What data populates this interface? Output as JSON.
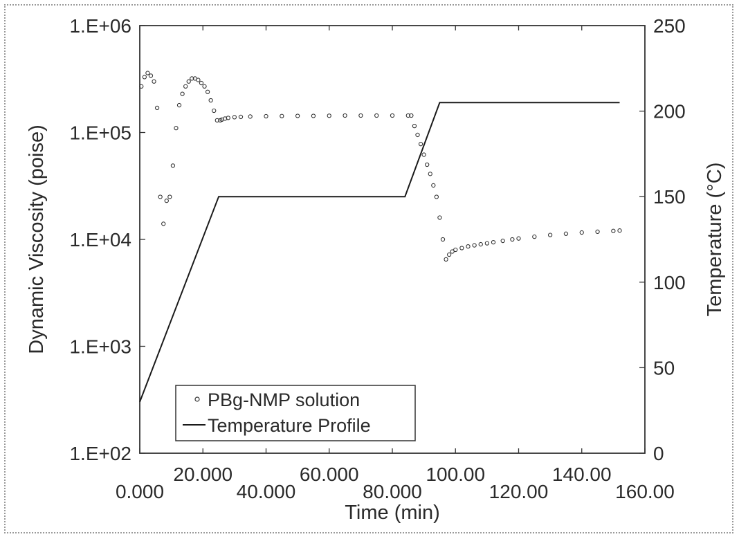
{
  "chart_data": {
    "type": "scatter",
    "xlabel": "Time (min)",
    "ylabel_left": "Dynamic Viscosity (poise)",
    "ylabel_right": "Temperature (°C)",
    "x_ticks_lower": [
      "0.000",
      "40.000",
      "80.000",
      "120.00",
      "160.00"
    ],
    "x_ticks_upper": [
      "20.000",
      "60.000",
      "100.00",
      "140.00"
    ],
    "x_tick_values_lower": [
      0,
      40,
      80,
      120,
      160
    ],
    "x_tick_values_upper": [
      20,
      60,
      100,
      140
    ],
    "y_left_ticks": [
      "1.E+02",
      "1.E+03",
      "1.E+04",
      "1.E+05",
      "1.E+06"
    ],
    "y_left_tick_values": [
      100,
      1000,
      10000,
      100000,
      1000000
    ],
    "y_right_ticks": [
      "0",
      "50",
      "100",
      "150",
      "200",
      "250"
    ],
    "y_right_tick_values": [
      0,
      50,
      100,
      150,
      200,
      250
    ],
    "xlim": [
      0,
      160
    ],
    "ylim_left": [
      100,
      1000000
    ],
    "ylim_left_scale": "log",
    "ylim_right": [
      0,
      250
    ],
    "legend_position": "bottom-left",
    "grid": false,
    "series": [
      {
        "name": "PBg-NMP solution",
        "axis": "left",
        "marker": "open-circle",
        "color": "#333333",
        "x": [
          0.5,
          1.5,
          2.5,
          3.5,
          4.5,
          5.5,
          6.5,
          7.5,
          8.5,
          9.5,
          10.5,
          11.5,
          12.5,
          13.5,
          14.5,
          15.5,
          16.5,
          17.5,
          18.5,
          19.5,
          20.5,
          21.5,
          22.5,
          23.5,
          24.5,
          25.5,
          26,
          27,
          28,
          30,
          32,
          35,
          40,
          45,
          50,
          55,
          60,
          65,
          70,
          75,
          80,
          85,
          86,
          87,
          88,
          89,
          90,
          91,
          92,
          93,
          94,
          95,
          96,
          97,
          98,
          99,
          100,
          102,
          104,
          106,
          108,
          110,
          112,
          115,
          118,
          120,
          125,
          130,
          135,
          140,
          145,
          150,
          152
        ],
        "y": [
          270000,
          330000,
          360000,
          340000,
          300000,
          170000,
          25000,
          14000,
          23000,
          25000,
          49000,
          110000,
          180000,
          230000,
          270000,
          300000,
          320000,
          320000,
          310000,
          290000,
          270000,
          240000,
          200000,
          160000,
          130000,
          130000,
          132000,
          135000,
          137000,
          139000,
          140000,
          141000,
          142000,
          142500,
          143000,
          143000,
          143500,
          144000,
          144000,
          144000,
          144000,
          144000,
          144000,
          115000,
          95000,
          78000,
          62000,
          50000,
          41000,
          32000,
          25000,
          16000,
          10000,
          6500,
          7200,
          7700,
          8000,
          8300,
          8600,
          8800,
          9000,
          9200,
          9400,
          9700,
          10000,
          10200,
          10600,
          11000,
          11300,
          11600,
          11800,
          12000,
          12100
        ]
      },
      {
        "name": "Temperature Profile",
        "axis": "right",
        "marker": "line",
        "color": "#1a1a1a",
        "x": [
          0,
          25,
          84,
          95,
          152
        ],
        "y": [
          30,
          150,
          150,
          205,
          205
        ]
      }
    ]
  }
}
